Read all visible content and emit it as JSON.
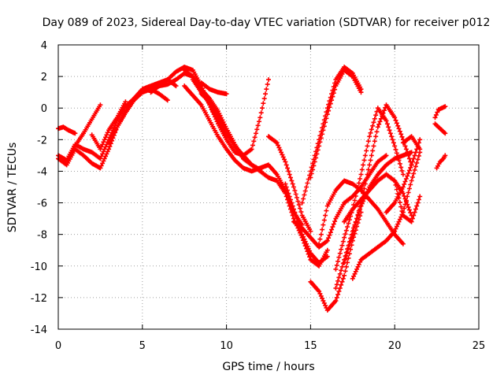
{
  "chart_data": {
    "type": "scatter",
    "title": "Day 089 of 2023, Sidereal Day-to-day VTEC variation (SDTVAR) for receiver p012",
    "xlabel": "GPS time / hours",
    "ylabel": "SDTVAR / TECUs",
    "xlim": [
      0,
      25
    ],
    "ylim": [
      -14,
      4
    ],
    "xticks": [
      0,
      5,
      10,
      15,
      20,
      25
    ],
    "yticks": [
      4,
      2,
      0,
      -2,
      -4,
      -6,
      -8,
      -10,
      -12,
      -14
    ],
    "grid": true,
    "legend": "none",
    "marker": "plus",
    "color": "#ff0000",
    "series": [
      {
        "x": [
          0,
          0.5,
          1.0,
          1.5,
          2.0,
          2.5,
          3.0,
          3.5,
          4.0,
          4.5,
          5.0,
          5.5,
          6.0,
          6.5,
          7.0,
          7.5,
          8.0,
          8.5,
          9.0,
          9.5,
          10.0
        ],
        "y": [
          -3.2,
          -3.6,
          -2.6,
          -3.0,
          -3.5,
          -3.8,
          -2.6,
          -1.2,
          -0.3,
          0.5,
          1.0,
          1.2,
          1.4,
          1.5,
          1.8,
          2.2,
          2.0,
          1.2,
          0.2,
          -0.8,
          -1.8
        ]
      },
      {
        "x": [
          0,
          0.5,
          1.0,
          1.5,
          2.0,
          2.5,
          3.0,
          3.5,
          4.0,
          4.5,
          5.0,
          5.5,
          6.0,
          6.5
        ],
        "y": [
          -3.0,
          -3.3,
          -2.3,
          -2.6,
          -2.8,
          -3.2,
          -2.0,
          -0.8,
          0.1,
          0.6,
          1.1,
          1.2,
          0.9,
          0.5
        ]
      },
      {
        "x": [
          0,
          0.3,
          0.6,
          1.0
        ],
        "y": [
          -1.3,
          -1.2,
          -1.4,
          -1.6
        ]
      },
      {
        "x": [
          1.0,
          1.5,
          2.0,
          2.5
        ],
        "y": [
          -2.4,
          -1.6,
          -0.7,
          0.2
        ]
      },
      {
        "x": [
          2.0,
          2.5,
          3.0,
          3.5,
          4.0
        ],
        "y": [
          -1.7,
          -2.6,
          -1.4,
          -0.6,
          0.4
        ]
      },
      {
        "x": [
          3.0,
          3.5,
          4.0,
          4.5,
          5.0,
          5.5,
          6.0,
          6.5,
          7.0
        ],
        "y": [
          -2.2,
          -1.2,
          -0.2,
          0.6,
          1.2,
          1.4,
          1.6,
          1.8,
          1.4
        ]
      },
      {
        "x": [
          5.5,
          6.0,
          6.5,
          7.0,
          7.5,
          8.0,
          8.5,
          9.0,
          9.5,
          10.0,
          10.5,
          11.0,
          11.5,
          12.0,
          12.5
        ],
        "y": [
          1.0,
          1.4,
          1.8,
          2.3,
          2.6,
          2.4,
          1.4,
          0.2,
          -1.0,
          -2.0,
          -2.8,
          -3.0,
          -2.6,
          -0.6,
          1.8
        ]
      },
      {
        "x": [
          7.5,
          8.0,
          8.5,
          9.0,
          9.5,
          10.0,
          10.5,
          11.0,
          11.5
        ],
        "y": [
          2.4,
          2.0,
          1.2,
          0.6,
          -0.2,
          -1.3,
          -2.3,
          -3.2,
          -3.6
        ]
      },
      {
        "x": [
          8.0,
          8.5,
          9.0,
          9.5,
          10.0,
          10.5,
          11.0,
          11.5,
          12.0
        ],
        "y": [
          1.8,
          1.0,
          0.3,
          -0.6,
          -1.6,
          -2.4,
          -3.0,
          -3.6,
          -3.9
        ]
      },
      {
        "x": [
          7.5,
          8.0,
          8.5,
          9.0,
          9.5,
          10.0,
          10.5,
          11.0,
          11.5,
          12.0,
          12.5,
          13.0,
          13.5,
          14.0,
          14.5
        ],
        "y": [
          1.4,
          0.8,
          0.2,
          -0.8,
          -1.8,
          -2.6,
          -3.3,
          -3.8,
          -4.0,
          -3.8,
          -3.6,
          -4.2,
          -5.2,
          -6.6,
          -7.4
        ]
      },
      {
        "x": [
          8.5,
          9.0,
          9.5,
          10.0
        ],
        "y": [
          1.6,
          1.2,
          1.0,
          0.9
        ]
      },
      {
        "x": [
          8.5,
          9.0,
          9.5,
          10.0,
          10.5,
          11.0,
          11.5,
          12.0,
          12.5,
          13.0,
          13.5,
          14.0,
          14.5,
          15.0,
          15.5,
          16.0
        ],
        "y": [
          0.9,
          0.4,
          -0.4,
          -1.6,
          -2.4,
          -3.2,
          -3.6,
          -4.0,
          -4.4,
          -4.6,
          -5.4,
          -7.0,
          -8.2,
          -9.6,
          -10.0,
          -9.0
        ]
      },
      {
        "x": [
          12.5,
          13.0,
          13.5,
          14.0,
          14.5,
          15.0
        ],
        "y": [
          -1.8,
          -2.2,
          -3.4,
          -5.0,
          -6.8,
          -7.8
        ]
      },
      {
        "x": [
          13.5,
          14.0,
          14.5,
          15.0,
          15.5,
          16.0
        ],
        "y": [
          -4.8,
          -6.4,
          -8.0,
          -9.2,
          -9.8,
          -9.4
        ]
      },
      {
        "x": [
          14.0,
          14.5,
          15.0,
          15.5,
          16.0,
          16.5,
          17.0,
          17.5,
          18.0,
          18.5,
          19.0,
          19.5
        ],
        "y": [
          -7.2,
          -7.6,
          -8.2,
          -8.8,
          -8.4,
          -7.0,
          -6.0,
          -5.6,
          -5.0,
          -4.2,
          -3.4,
          -3.0
        ]
      },
      {
        "x": [
          14.5,
          15.0,
          15.5,
          16.0,
          16.5,
          17.0,
          17.5,
          18.0
        ],
        "y": [
          -6.0,
          -4.0,
          -2.0,
          0.0,
          1.8,
          2.6,
          2.2,
          1.2
        ]
      },
      {
        "x": [
          15.0,
          15.5,
          16.0,
          16.5,
          17.0,
          17.5,
          18.0
        ],
        "y": [
          -4.4,
          -2.4,
          -0.4,
          1.4,
          2.4,
          2.0,
          1.0
        ]
      },
      {
        "x": [
          15.5,
          16.0,
          16.5,
          17.0,
          17.5,
          18.0,
          18.5,
          19.0,
          19.5,
          20.0,
          20.5
        ],
        "y": [
          -8.6,
          -6.2,
          -5.2,
          -4.6,
          -4.8,
          -5.2,
          -5.8,
          -6.4,
          -7.2,
          -8.0,
          -8.6
        ]
      },
      {
        "x": [
          15.0,
          15.5,
          16.0,
          16.5,
          17.0,
          17.5,
          18.0
        ],
        "y": [
          -11.0,
          -11.6,
          -12.8,
          -12.2,
          -10.6,
          -8.4,
          -6.6
        ]
      },
      {
        "x": [
          16.5,
          17.0,
          17.5,
          18.0,
          18.5,
          19.0,
          19.5,
          20.0,
          20.5,
          21.0
        ],
        "y": [
          -11.4,
          -9.6,
          -7.8,
          -6.2,
          -5.0,
          -4.2,
          -3.6,
          -3.2,
          -3.0,
          -2.8
        ]
      },
      {
        "x": [
          17.0,
          17.5,
          18.0,
          18.5,
          19.0,
          19.5,
          20.0,
          20.5,
          21.0
        ],
        "y": [
          -7.2,
          -6.4,
          -5.8,
          -5.2,
          -4.6,
          -4.2,
          -4.6,
          -5.4,
          -6.8
        ]
      },
      {
        "x": [
          16.5,
          17.0,
          17.5,
          18.0,
          18.5,
          19.0,
          19.5,
          20.0,
          20.5
        ],
        "y": [
          -10.2,
          -8.2,
          -6.4,
          -4.2,
          -1.8,
          0.0,
          -0.8,
          -2.4,
          -4.2
        ]
      },
      {
        "x": [
          17.0,
          17.5,
          18.0,
          18.5,
          19.0,
          19.5,
          20.0,
          20.5,
          21.0
        ],
        "y": [
          -9.8,
          -8.0,
          -6.0,
          -3.6,
          -1.2,
          0.2,
          -0.6,
          -2.0,
          -3.6
        ]
      },
      {
        "x": [
          17.5,
          18.0,
          18.5,
          19.0,
          19.5,
          20.0,
          20.5,
          21.0,
          21.5
        ],
        "y": [
          -10.8,
          -9.6,
          -9.2,
          -8.8,
          -8.4,
          -7.8,
          -6.6,
          -4.6,
          -2.8
        ]
      },
      {
        "x": [
          19.5,
          20.0,
          20.5,
          21.0,
          21.5
        ],
        "y": [
          -6.6,
          -6.0,
          -5.0,
          -3.6,
          -2.0
        ]
      },
      {
        "x": [
          20.0,
          20.5,
          21.0,
          21.5
        ],
        "y": [
          -4.6,
          -6.8,
          -7.2,
          -5.6
        ]
      },
      {
        "x": [
          20.5,
          21.0,
          21.5
        ],
        "y": [
          -2.2,
          -1.8,
          -2.6
        ]
      },
      {
        "x": [
          22.4,
          22.6,
          22.8,
          23.0
        ],
        "y": [
          -0.6,
          -0.1,
          0.0,
          0.1
        ]
      },
      {
        "x": [
          22.4,
          22.6,
          22.8,
          23.0
        ],
        "y": [
          -1.0,
          -1.2,
          -1.4,
          -1.6
        ]
      },
      {
        "x": [
          22.5,
          22.7,
          22.9,
          23.0
        ],
        "y": [
          -3.8,
          -3.4,
          -3.2,
          -3.0
        ]
      }
    ]
  }
}
